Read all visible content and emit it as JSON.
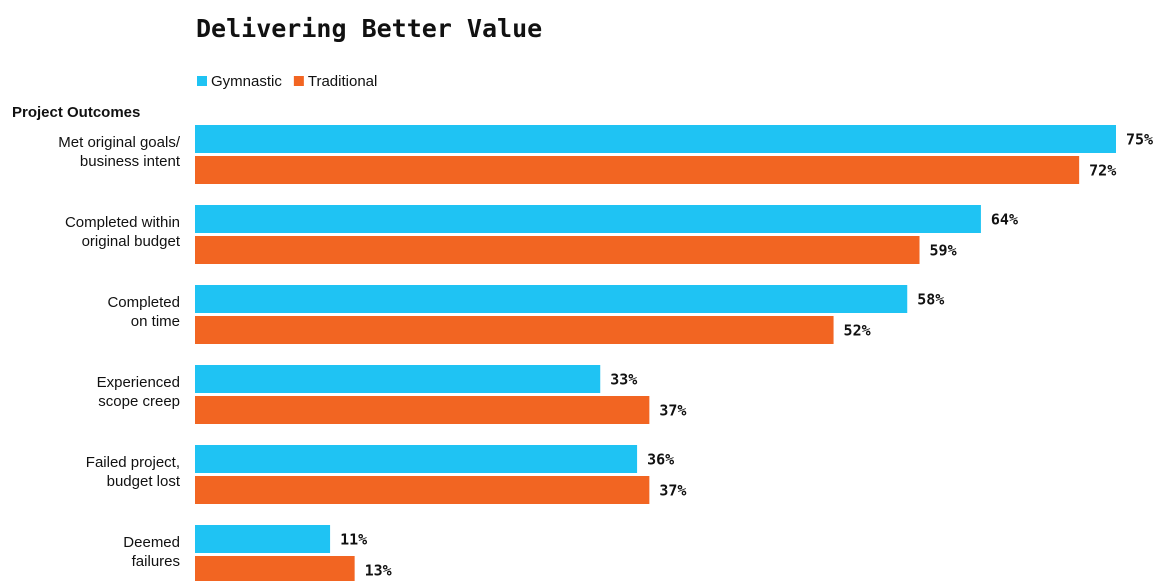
{
  "chart_data": {
    "type": "hbar",
    "title": "Delivering Better Value",
    "y_label": "Project Outcomes",
    "categories": [
      [
        "Met original goals/",
        "business intent"
      ],
      [
        "Completed within",
        "original budget"
      ],
      [
        "Completed",
        "on time"
      ],
      [
        "Experienced",
        "scope creep"
      ],
      [
        "Failed project,",
        "budget lost"
      ],
      [
        "Deemed",
        "failures"
      ]
    ],
    "series": [
      {
        "name": "Gymnastic",
        "color": "#1fc3f3",
        "values": [
          75,
          64,
          58,
          33,
          36,
          11
        ],
        "value_labels": [
          "75%",
          "64%",
          "58%",
          "33%",
          "36%",
          "11%"
        ]
      },
      {
        "name": "Traditional",
        "color": "#f26522",
        "values": [
          72,
          59,
          52,
          37,
          37,
          13
        ],
        "value_labels": [
          "72%",
          "59%",
          "52%",
          "37%",
          "37%",
          "13%"
        ]
      }
    ],
    "legend": "top-left"
  }
}
